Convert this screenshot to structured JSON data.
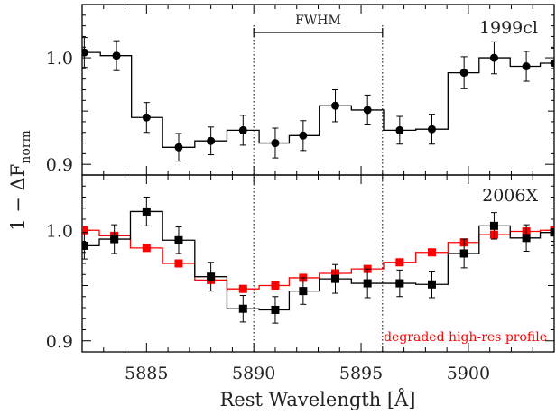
{
  "chart_data": {
    "type": "line",
    "xlabel": "Rest Wavelength  [Å]",
    "ylabel": "1 − ΔF_norm",
    "ylabel_main": "1 − ΔF",
    "ylabel_sub": "norm",
    "xlim": [
      5882,
      5904
    ],
    "x_ticks": [
      5885,
      5890,
      5895,
      5900
    ],
    "x_tick_labels": [
      "5885",
      "5890",
      "5895",
      "5900"
    ],
    "fwhm": {
      "label": "FWHM",
      "start": 5890.0,
      "end": 5896.0
    },
    "panels": [
      {
        "label": "1999cl",
        "ylim": [
          0.89,
          1.05
        ],
        "y_ticks": [
          0.9,
          1.0
        ],
        "y_tick_labels": [
          "0.9",
          "1.0"
        ],
        "series": [
          {
            "marker": "circle",
            "color": "#000000",
            "x": [
              5882.1,
              5883.6,
              5885.0,
              5886.5,
              5888.0,
              5889.5,
              5891.0,
              5892.3,
              5893.8,
              5895.3,
              5896.8,
              5898.3,
              5899.8,
              5901.2,
              5902.7,
              5904.0
            ],
            "y": [
              1.005,
              1.002,
              0.944,
              0.916,
              0.922,
              0.932,
              0.92,
              0.927,
              0.955,
              0.951,
              0.932,
              0.933,
              0.986,
              1.0,
              0.992,
              0.995
            ],
            "err": [
              0.014,
              0.014,
              0.014,
              0.013,
              0.013,
              0.014,
              0.014,
              0.014,
              0.015,
              0.014,
              0.013,
              0.014,
              0.015,
              0.015,
              0.014,
              0.014
            ]
          }
        ]
      },
      {
        "label": "2006X",
        "ylim": [
          0.89,
          1.05
        ],
        "y_ticks": [
          0.9,
          1.0
        ],
        "y_tick_labels": [
          "0.9",
          "1.0"
        ],
        "annotation": {
          "text": "degraded high-res profile",
          "color": "#ff0000"
        },
        "series": [
          {
            "marker": "square",
            "color": "#000000",
            "x": [
              5882.1,
              5883.5,
              5885.0,
              5886.5,
              5888.0,
              5889.5,
              5891.0,
              5892.3,
              5893.8,
              5895.3,
              5896.8,
              5898.3,
              5899.8,
              5901.2,
              5902.7,
              5904.0
            ],
            "y": [
              0.986,
              0.992,
              1.017,
              0.991,
              0.958,
              0.929,
              0.928,
              0.945,
              0.956,
              0.952,
              0.952,
              0.951,
              0.979,
              1.004,
              0.993,
              0.998
            ],
            "err": [
              0.012,
              0.013,
              0.013,
              0.012,
              0.013,
              0.012,
              0.012,
              0.012,
              0.013,
              0.013,
              0.012,
              0.012,
              0.013,
              0.012,
              0.012,
              0.012
            ]
          },
          {
            "marker": "square",
            "color": "#ff0000",
            "x": [
              5882.1,
              5883.5,
              5885.0,
              5886.5,
              5888.0,
              5889.5,
              5891.0,
              5892.3,
              5893.8,
              5895.3,
              5896.8,
              5898.3,
              5899.8,
              5901.2,
              5902.7,
              5904.0
            ],
            "y": [
              1.0,
              0.995,
              0.984,
              0.97,
              0.955,
              0.947,
              0.95,
              0.957,
              0.961,
              0.965,
              0.971,
              0.98,
              0.989,
              0.996,
              0.999,
              1.0
            ]
          }
        ]
      }
    ]
  }
}
